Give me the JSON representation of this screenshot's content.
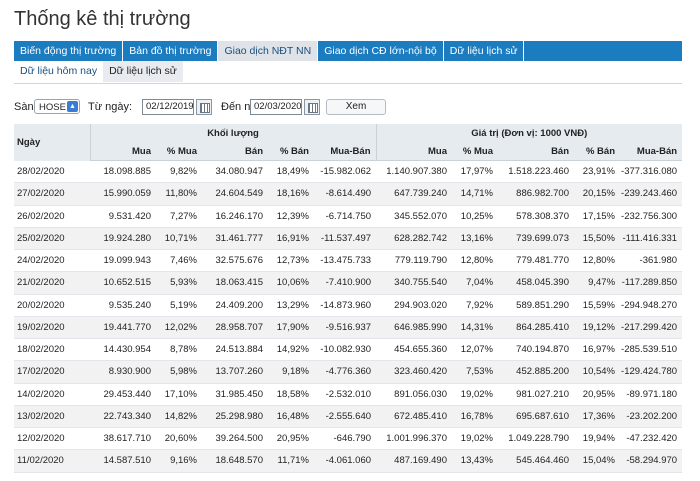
{
  "page_title": "Thống kê thị trường",
  "tabs": [
    {
      "label": "Biến động thị trường",
      "active": false
    },
    {
      "label": "Bản đồ thị trường",
      "active": false
    },
    {
      "label": "Giao dịch NĐT NN",
      "active": true
    },
    {
      "label": "Giao dịch CĐ lớn-nội bộ",
      "active": false
    },
    {
      "label": "Dữ liệu lịch sử",
      "active": false
    }
  ],
  "subtabs": [
    {
      "label": "Dữ liệu hôm nay",
      "active": false
    },
    {
      "label": "Dữ liệu lịch sử",
      "active": true
    }
  ],
  "filters": {
    "exchange_label": "Sàn",
    "exchange_value": "HOSE",
    "from_label": "Từ ngày:",
    "from_value": "02/12/2019",
    "to_label": "Đến ngày:",
    "to_value": "02/03/2020",
    "view_button": "Xem"
  },
  "table": {
    "date_header": "Ngày",
    "group_volume": "Khối lượng",
    "group_value": "Giá trị (Đơn vị: 1000 VNĐ)",
    "sub_headers": [
      "Mua",
      "% Mua",
      "Bán",
      "% Bán",
      "Mua-Bán",
      "Mua",
      "% Mua",
      "Bán",
      "% Bán",
      "Mua-Bán"
    ],
    "rows": [
      [
        "28/02/2020",
        "18.098.885",
        "9,82%",
        "34.080.947",
        "18,49%",
        "-15.982.062",
        "1.140.907.380",
        "17,97%",
        "1.518.223.460",
        "23,91%",
        "-377.316.080"
      ],
      [
        "27/02/2020",
        "15.990.059",
        "11,80%",
        "24.604.549",
        "18,16%",
        "-8.614.490",
        "647.739.240",
        "14,71%",
        "886.982.700",
        "20,15%",
        "-239.243.460"
      ],
      [
        "26/02/2020",
        "9.531.420",
        "7,27%",
        "16.246.170",
        "12,39%",
        "-6.714.750",
        "345.552.070",
        "10,25%",
        "578.308.370",
        "17,15%",
        "-232.756.300"
      ],
      [
        "25/02/2020",
        "19.924.280",
        "10,71%",
        "31.461.777",
        "16,91%",
        "-11.537.497",
        "628.282.742",
        "13,16%",
        "739.699.073",
        "15,50%",
        "-111.416.331"
      ],
      [
        "24/02/2020",
        "19.099.943",
        "7,46%",
        "32.575.676",
        "12,73%",
        "-13.475.733",
        "779.119.790",
        "12,80%",
        "779.481.770",
        "12,80%",
        "-361.980"
      ],
      [
        "21/02/2020",
        "10.652.515",
        "5,93%",
        "18.063.415",
        "10,06%",
        "-7.410.900",
        "340.755.540",
        "7,04%",
        "458.045.390",
        "9,47%",
        "-117.289.850"
      ],
      [
        "20/02/2020",
        "9.535.240",
        "5,19%",
        "24.409.200",
        "13,29%",
        "-14.873.960",
        "294.903.020",
        "7,92%",
        "589.851.290",
        "15,59%",
        "-294.948.270"
      ],
      [
        "19/02/2020",
        "19.441.770",
        "12,02%",
        "28.958.707",
        "17,90%",
        "-9.516.937",
        "646.985.990",
        "14,31%",
        "864.285.410",
        "19,12%",
        "-217.299.420"
      ],
      [
        "18/02/2020",
        "14.430.954",
        "8,78%",
        "24.513.884",
        "14,92%",
        "-10.082.930",
        "454.655.360",
        "12,07%",
        "740.194.870",
        "16,97%",
        "-285.539.510"
      ],
      [
        "17/02/2020",
        "8.930.900",
        "5,98%",
        "13.707.260",
        "9,18%",
        "-4.776.360",
        "323.460.420",
        "7,53%",
        "452.885.200",
        "10,54%",
        "-129.424.780"
      ],
      [
        "14/02/2020",
        "29.453.440",
        "17,10%",
        "31.985.450",
        "18,58%",
        "-2.532.010",
        "891.056.030",
        "19,02%",
        "981.027.210",
        "20,95%",
        "-89.971.180"
      ],
      [
        "13/02/2020",
        "22.743.340",
        "14,82%",
        "25.298.980",
        "16,48%",
        "-2.555.640",
        "672.485.410",
        "16,78%",
        "695.687.610",
        "17,36%",
        "-23.202.200"
      ],
      [
        "12/02/2020",
        "38.617.710",
        "20,60%",
        "39.264.500",
        "20,95%",
        "-646.790",
        "1.001.996.370",
        "19,02%",
        "1.049.228.790",
        "19,94%",
        "-47.232.420"
      ],
      [
        "11/02/2020",
        "14.587.510",
        "9,16%",
        "18.648.570",
        "11,71%",
        "-4.061.060",
        "487.169.490",
        "13,43%",
        "545.464.460",
        "15,04%",
        "-58.294.970"
      ]
    ]
  }
}
